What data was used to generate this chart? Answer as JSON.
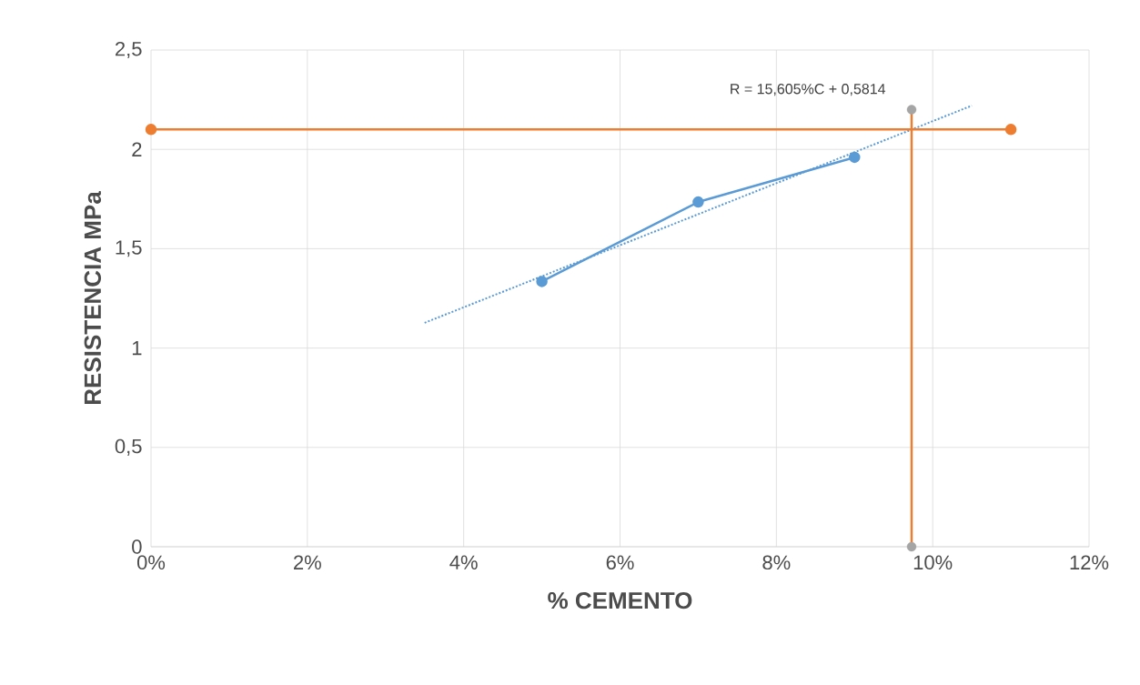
{
  "chart_data": {
    "type": "line",
    "xlabel": "% CEMENTO",
    "ylabel": "RESISTENCIA MPa",
    "annotations": [
      "R = 15,605%C + 0,5814"
    ],
    "xlim": [
      0,
      12
    ],
    "xticks": [
      {
        "value": 0,
        "label": "0%"
      },
      {
        "value": 2,
        "label": "2%"
      },
      {
        "value": 4,
        "label": "4%"
      },
      {
        "value": 6,
        "label": "6%"
      },
      {
        "value": 8,
        "label": "8%"
      },
      {
        "value": 10,
        "label": "10%"
      },
      {
        "value": 12,
        "label": "12%"
      }
    ],
    "ylim": [
      0,
      2.5
    ],
    "yticks": [
      0,
      {
        "value": 0.5,
        "label": "0,5"
      },
      1,
      {
        "value": 1.5,
        "label": "1,5"
      },
      2,
      {
        "value": 2.5,
        "label": "2,5"
      }
    ],
    "grid": true,
    "series": [
      {
        "color": "#5b9bd5",
        "x": [
          5,
          7,
          9
        ],
        "values": [
          1.335,
          1.735,
          1.96
        ],
        "marker": "circle"
      },
      {
        "color": "#5b9bd5",
        "x": [
          3.5,
          10.5
        ],
        "values": [
          1.127,
          2.22
        ],
        "line_style": "dotted"
      },
      {
        "color": "#ed7d31",
        "x": [
          0,
          11
        ],
        "values": [
          2.1,
          2.1
        ],
        "marker": "circle"
      },
      {
        "color": "#ed7d31",
        "x": [
          9.73,
          9.73
        ],
        "values": [
          0,
          2.2
        ]
      },
      {
        "type": "scatter",
        "color": "#a5a5a5",
        "x": [
          9.73,
          9.73
        ],
        "values": [
          0,
          2.2
        ],
        "marker": "circle"
      }
    ]
  }
}
